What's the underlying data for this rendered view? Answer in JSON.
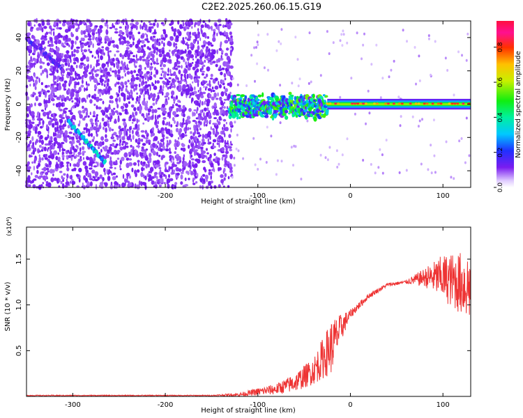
{
  "title": "C2E2.2025.260.06.15.G19",
  "chart_data": [
    {
      "type": "heatmap",
      "title": "C2E2.2025.260.06.15.G19",
      "xlabel": "Height of straight line (km)",
      "ylabel": "Frequency (Hz)",
      "xlim": [
        -350,
        130
      ],
      "ylim": [
        -50,
        50
      ],
      "x_ticks": [
        -300,
        -200,
        -100,
        0,
        100
      ],
      "y_ticks": [
        -40,
        -20,
        0,
        20,
        40
      ],
      "x_tick_labels": [
        "-300",
        "-200",
        "-100",
        "0",
        "100"
      ],
      "y_tick_labels": [
        "-40",
        "-20",
        "0",
        "20",
        "40"
      ],
      "colorbar": {
        "label": "Normalized spectral amplitude",
        "range": [
          0.0,
          0.95
        ],
        "ticks": [
          0.0,
          0.2,
          0.4,
          0.6,
          0.8
        ],
        "tick_labels": [
          "0.0",
          "0.2",
          "0.4",
          "0.6",
          "0.8"
        ],
        "colormap": "rainbow (purple-blue-cyan-green-yellow-red-magenta)"
      },
      "features": [
        {
          "name": "noise region",
          "x_range": [
            -350,
            -130
          ],
          "freq_range": [
            -50,
            50
          ],
          "amplitude": 0.1
        },
        {
          "name": "diagonal streak A",
          "from": [
            -350,
            40
          ],
          "to": [
            -310,
            20
          ],
          "amplitude": 0.15
        },
        {
          "name": "diagonal streak B",
          "from": [
            -305,
            -10
          ],
          "to": [
            -265,
            -35
          ],
          "amplitude": 0.3
        },
        {
          "name": "turbulent band",
          "x_range": [
            -130,
            -25
          ],
          "freq_center": 0,
          "freq_halfwidth": 8,
          "amplitude": 0.35
        },
        {
          "name": "stable carrier",
          "x_range": [
            -25,
            130
          ],
          "freq_center": 0,
          "freq_halfwidth": 2,
          "amplitude": 0.9
        }
      ],
      "colors": {
        "background": "#ffffff",
        "axis": "#000000"
      }
    },
    {
      "type": "line",
      "xlabel": "Height of straight line (km)",
      "ylabel": "SNR (10 * v/v)",
      "y_multiplier_label": "(x10⁴)",
      "xlim": [
        -350,
        130
      ],
      "ylim": [
        0,
        1.85
      ],
      "x_ticks": [
        -300,
        -200,
        -100,
        0,
        100
      ],
      "y_ticks": [
        0.5,
        1.0,
        1.5
      ],
      "x_tick_labels": [
        "-300",
        "-200",
        "-100",
        "0",
        "100"
      ],
      "y_tick_labels": [
        "0.5",
        "1.0",
        "1.5"
      ],
      "series": [
        {
          "name": "SNR",
          "color": "#ee3333",
          "x": [
            -350,
            -300,
            -250,
            -200,
            -150,
            -120,
            -100,
            -80,
            -60,
            -40,
            -20,
            -10,
            0,
            20,
            40,
            60,
            80,
            100,
            130
          ],
          "mean": [
            0.01,
            0.01,
            0.01,
            0.01,
            0.01,
            0.02,
            0.05,
            0.08,
            0.15,
            0.28,
            0.55,
            0.75,
            0.9,
            1.1,
            1.22,
            1.25,
            1.3,
            1.3,
            1.2
          ],
          "noise_amplitude": [
            0.005,
            0.005,
            0.005,
            0.005,
            0.005,
            0.02,
            0.04,
            0.06,
            0.1,
            0.15,
            0.3,
            0.15,
            0.05,
            0.03,
            0.02,
            0.02,
            0.1,
            0.25,
            0.4
          ]
        }
      ],
      "colors": {
        "background": "#ffffff",
        "axis": "#000000"
      }
    }
  ]
}
